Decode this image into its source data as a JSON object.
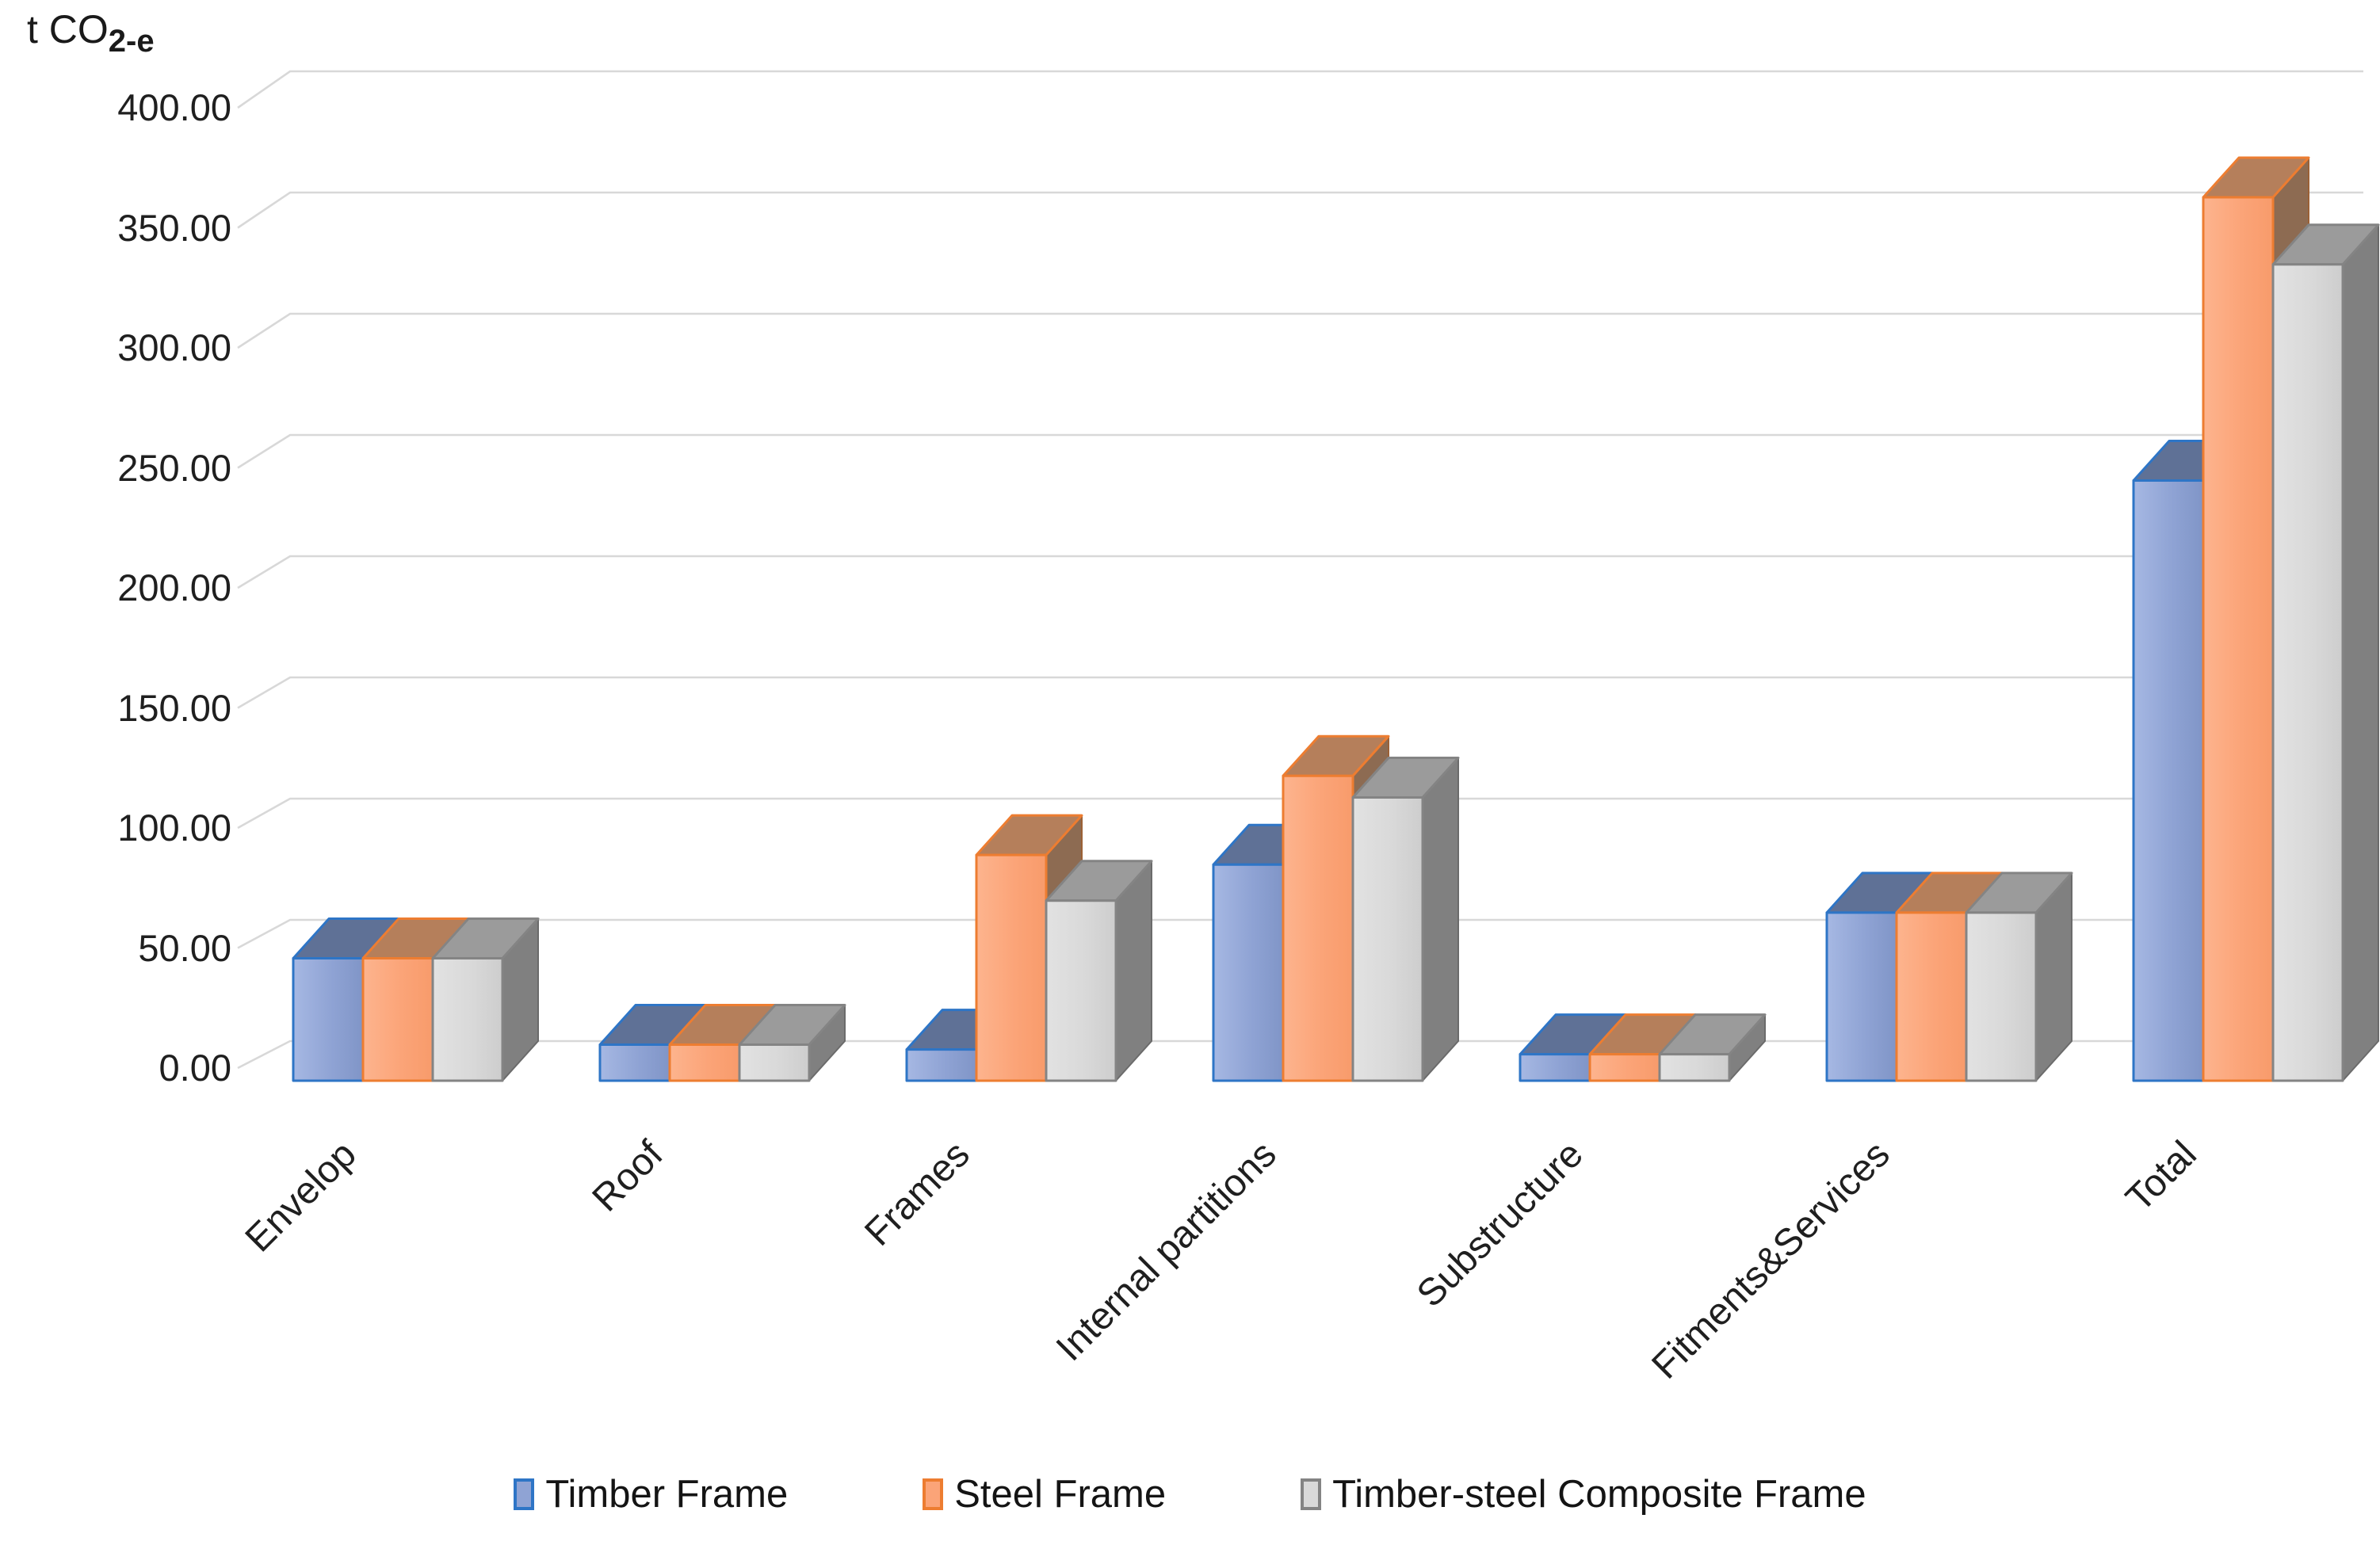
{
  "axis": {
    "title_main": "t CO",
    "title_sub": "2-e"
  },
  "y_axis": {
    "tick_labels": [
      "400.00",
      "350.00",
      "300.00",
      "250.00",
      "200.00",
      "150.00",
      "100.00",
      "50.00",
      "0.00"
    ],
    "tick_values": [
      400,
      350,
      300,
      250,
      200,
      150,
      100,
      50,
      0
    ]
  },
  "colors": {
    "gridline": "#D8D8D8",
    "text": "#1f1f1f",
    "background": "#ffffff"
  },
  "series_styles": [
    {
      "front": "#8FA3D4",
      "front_light": "#A6B8E3",
      "front_dark": "#8095C7",
      "border": "#2E75C6",
      "top": "#5F7196",
      "side": "#7A8CB2",
      "side_stroke": "#2E5B94"
    },
    {
      "front": "#FBA478",
      "front_light": "#FDB48E",
      "front_dark": "#F89B6B",
      "border": "#ED7D31",
      "top": "#B57F5B",
      "side": "#8D6B52",
      "side_stroke": "#9C6136"
    },
    {
      "front": "#D9D9D9",
      "front_light": "#E2E2E2",
      "front_dark": "#CDCDCD",
      "border": "#848484",
      "top": "#9B9B9B",
      "side": "#808080",
      "side_stroke": "#6B6B6B"
    }
  ],
  "chart_data": {
    "type": "bar",
    "is_3d": true,
    "title": "",
    "ylabel": "t CO2-e",
    "xlabel": "",
    "ylim": [
      0,
      400
    ],
    "ytick_step": 50,
    "grid": true,
    "legend_position": "bottom",
    "categories": [
      "Envelop",
      "Roof",
      "Frames",
      "Internal partitions",
      "Substructure",
      "Fitments&Services",
      "Total"
    ],
    "series": [
      {
        "name": "Timber Frame",
        "values": [
          51,
          15,
          13,
          90,
          11,
          70,
          250
        ]
      },
      {
        "name": "Steel Frame",
        "values": [
          51,
          15,
          94,
          127,
          11,
          70,
          368
        ]
      },
      {
        "name": "Timber-steel Composite Frame",
        "values": [
          51,
          15,
          75,
          118,
          11,
          70,
          340
        ]
      }
    ]
  }
}
